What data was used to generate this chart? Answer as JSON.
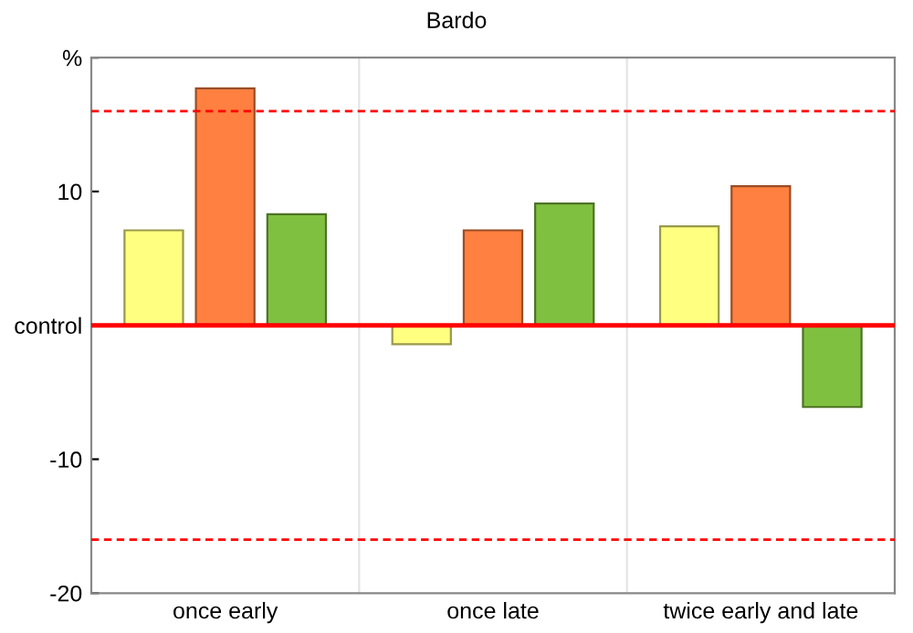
{
  "chart_data": {
    "type": "bar",
    "title": "Bardo",
    "categories": [
      "once early",
      "once late",
      "twice early and late"
    ],
    "series": [
      {
        "color": "#ffff80",
        "values": [
          7.1,
          -1.4,
          7.4
        ]
      },
      {
        "color": "#ff8040",
        "values": [
          17.7,
          7.1,
          10.4
        ]
      },
      {
        "color": "#80c040",
        "values": [
          8.3,
          9.1,
          -6.1
        ]
      }
    ],
    "ylim": [
      -20,
      20
    ],
    "yticks": [
      -20,
      -10,
      {
        "value": 0,
        "label": "control"
      },
      10,
      {
        "value": 20,
        "label": "%"
      }
    ],
    "grid": "x",
    "ref_lines": [
      {
        "axis": "y",
        "value": 0,
        "color": "#ff0000",
        "line_style": "solid"
      },
      {
        "axis": "y",
        "value": 16,
        "color": "#ff0000",
        "line_style": "dashed"
      },
      {
        "axis": "y",
        "value": -16,
        "color": "#ff0000",
        "line_style": "dashed"
      }
    ]
  }
}
